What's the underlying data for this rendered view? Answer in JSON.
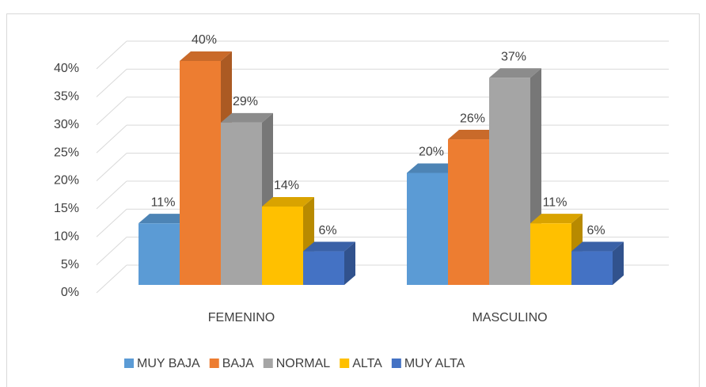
{
  "chart_data": {
    "type": "bar3d",
    "categories": [
      "FEMENINO",
      "MASCULINO"
    ],
    "series": [
      {
        "name": "MUY BAJA",
        "color": "#5b9bd5",
        "values": [
          11,
          20
        ],
        "value_labels": [
          "11%",
          "20%"
        ]
      },
      {
        "name": "BAJA",
        "color": "#ed7d31",
        "values": [
          40,
          26
        ],
        "value_labels": [
          "40%",
          "26%"
        ]
      },
      {
        "name": "NORMAL",
        "color": "#a5a5a5",
        "values": [
          29,
          37
        ],
        "value_labels": [
          "29%",
          "37%"
        ]
      },
      {
        "name": "ALTA",
        "color": "#ffc000",
        "values": [
          14,
          11
        ],
        "value_labels": [
          "14%",
          "11%"
        ]
      },
      {
        "name": "MUY ALTA",
        "color": "#4472c4",
        "values": [
          6,
          6
        ],
        "value_labels": [
          "6%",
          "6%"
        ]
      }
    ],
    "ylim": [
      0,
      40
    ],
    "yticks": [
      {
        "value": 0,
        "label": "0%"
      },
      {
        "value": 5,
        "label": "5%"
      },
      {
        "value": 10,
        "label": "10%"
      },
      {
        "value": 15,
        "label": "15%"
      },
      {
        "value": 20,
        "label": "20%"
      },
      {
        "value": 25,
        "label": "25%"
      },
      {
        "value": 30,
        "label": "30%"
      },
      {
        "value": 35,
        "label": "35%"
      },
      {
        "value": 40,
        "label": "40%"
      }
    ],
    "grid": true,
    "legend": "bottom"
  }
}
